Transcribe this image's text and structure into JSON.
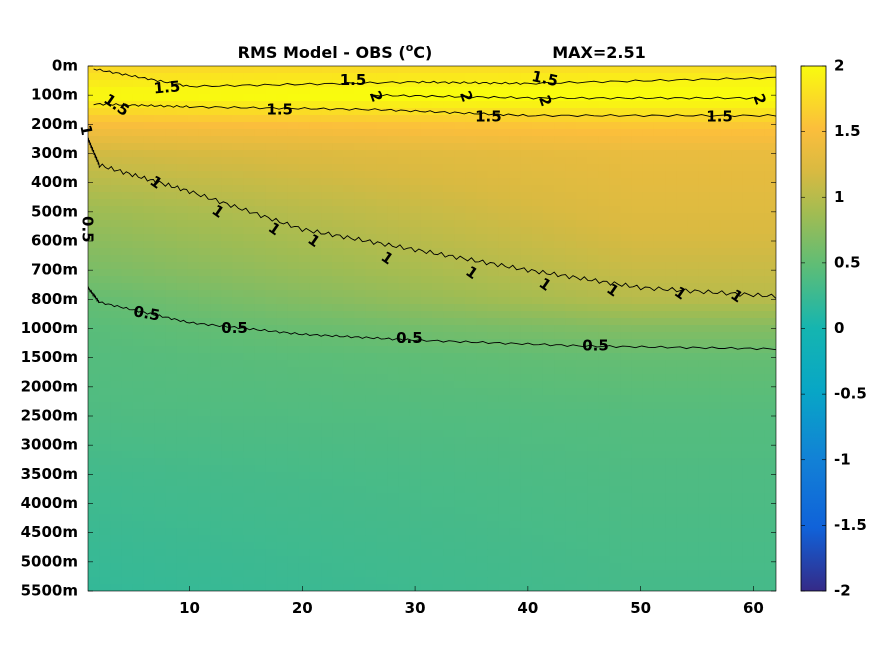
{
  "chart_data": {
    "type": "heatmap",
    "title": "RMS Model - OBS (°C)",
    "title_parts": {
      "prefix": "RMS Model - OBS (",
      "superscript": "o",
      "suffix": "C)"
    },
    "max_label": "MAX=2.51",
    "x_ticks": [
      10,
      20,
      30,
      40,
      50,
      60
    ],
    "x_tick_labels": [
      "10",
      "20",
      "30",
      "40",
      "50",
      "60"
    ],
    "x_range": [
      1,
      62
    ],
    "y_tick_labels": [
      "0m",
      "100m",
      "200m",
      "300m",
      "400m",
      "500m",
      "600m",
      "700m",
      "800m",
      "1000m",
      "1500m",
      "2000m",
      "2500m",
      "3000m",
      "3500m",
      "4000m",
      "4500m",
      "5000m",
      "5500m"
    ],
    "colorbar": {
      "range": [
        -2,
        2
      ],
      "ticks": [
        2,
        1.5,
        1,
        0.5,
        0,
        -0.5,
        -1,
        -1.5,
        -2
      ],
      "tick_labels": [
        "2",
        "1.5",
        "1",
        "0.5",
        "0",
        "-0.5",
        "-1",
        "-1.5",
        "-2"
      ],
      "colormap": "parula"
    },
    "field_profile": {
      "depth_level_index": [
        0,
        1,
        2,
        3,
        4,
        5,
        6,
        7,
        8,
        9,
        10,
        12,
        14,
        16,
        18
      ],
      "value_at_x1": [
        1.7,
        2.0,
        1.5,
        1.15,
        1.0,
        0.85,
        0.75,
        0.65,
        0.52,
        0.45,
        0.42,
        0.38,
        0.3,
        0.25,
        0.2
      ],
      "value_at_x62": [
        1.75,
        2.1,
        1.6,
        1.35,
        1.3,
        1.25,
        1.18,
        1.1,
        1.0,
        0.7,
        0.52,
        0.42,
        0.38,
        0.35,
        0.32
      ]
    },
    "contours": [
      {
        "level": 1.5,
        "label": "1.5",
        "points": [
          [
            1.5,
            0.1
          ],
          [
            10,
            0.7
          ],
          [
            30,
            0.55
          ],
          [
            40,
            0.6
          ],
          [
            62,
            0.4
          ]
        ]
      },
      {
        "level": 1.5,
        "label": "1.5",
        "points": [
          [
            1.5,
            1.3
          ],
          [
            10,
            1.4
          ],
          [
            27,
            1.5
          ],
          [
            40,
            1.7
          ],
          [
            62,
            1.7
          ]
        ]
      },
      {
        "level": 1,
        "label": "1",
        "points": [
          [
            1,
            2.5
          ],
          [
            2,
            3.4
          ],
          [
            10,
            4.3
          ],
          [
            20,
            5.6
          ],
          [
            30,
            6.3
          ],
          [
            40,
            7.0
          ],
          [
            50,
            7.6
          ],
          [
            62,
            7.9
          ]
        ]
      },
      {
        "level": 0.5,
        "label": "0.5",
        "points": [
          [
            1,
            7.6
          ],
          [
            2,
            8.1
          ],
          [
            10,
            8.8
          ],
          [
            20,
            9.2
          ],
          [
            30,
            9.4
          ],
          [
            45,
            9.6
          ],
          [
            62,
            9.7
          ]
        ]
      },
      {
        "level": 2,
        "label": "2",
        "points": [
          [
            26,
            1.0
          ],
          [
            41,
            1.1
          ],
          [
            60,
            1.1
          ]
        ]
      }
    ],
    "contour_labels": [
      {
        "text": "1.5",
        "x": 8.0,
        "y": 0.75,
        "angle": -5
      },
      {
        "text": "1.5",
        "x": 24.5,
        "y": 0.5,
        "angle": 0
      },
      {
        "text": "1.5",
        "x": 41.5,
        "y": 0.45,
        "angle": 12
      },
      {
        "text": "1.5",
        "x": 3.5,
        "y": 1.35,
        "angle": 35
      },
      {
        "text": "1.5",
        "x": 18.0,
        "y": 1.5,
        "angle": 0
      },
      {
        "text": "1.5",
        "x": 36.5,
        "y": 1.75,
        "angle": 0
      },
      {
        "text": "1.5",
        "x": 57.0,
        "y": 1.75,
        "angle": 0
      },
      {
        "text": "2",
        "x": 26.5,
        "y": 1.05,
        "angle": 70
      },
      {
        "text": "2",
        "x": 34.5,
        "y": 1.05,
        "angle": 70
      },
      {
        "text": "2",
        "x": 41.5,
        "y": 1.2,
        "angle": 70
      },
      {
        "text": "2",
        "x": 60.5,
        "y": 1.15,
        "angle": 70
      },
      {
        "text": "1",
        "x": 0.8,
        "y": 2.2,
        "angle": 80
      },
      {
        "text": "0.5",
        "x": 0.9,
        "y": 5.6,
        "angle": 90
      },
      {
        "text": "1",
        "x": 7.0,
        "y": 4.0,
        "angle": 35
      },
      {
        "text": "1",
        "x": 12.5,
        "y": 5.0,
        "angle": 35
      },
      {
        "text": "1",
        "x": 17.5,
        "y": 5.6,
        "angle": 35
      },
      {
        "text": "1",
        "x": 21.0,
        "y": 6.0,
        "angle": 35
      },
      {
        "text": "1",
        "x": 27.5,
        "y": 6.6,
        "angle": 35
      },
      {
        "text": "1",
        "x": 35.0,
        "y": 7.1,
        "angle": 35
      },
      {
        "text": "1",
        "x": 41.5,
        "y": 7.5,
        "angle": 35
      },
      {
        "text": "1",
        "x": 47.5,
        "y": 7.7,
        "angle": 35
      },
      {
        "text": "1",
        "x": 53.5,
        "y": 7.8,
        "angle": 35
      },
      {
        "text": "1",
        "x": 58.5,
        "y": 7.9,
        "angle": 35
      },
      {
        "text": "0.5",
        "x": 6.2,
        "y": 8.5,
        "angle": 10
      },
      {
        "text": "0.5",
        "x": 14.0,
        "y": 9.0,
        "angle": 0
      },
      {
        "text": "0.5",
        "x": 29.5,
        "y": 9.35,
        "angle": 0
      },
      {
        "text": "0.5",
        "x": 46.0,
        "y": 9.6,
        "angle": 0
      }
    ]
  }
}
